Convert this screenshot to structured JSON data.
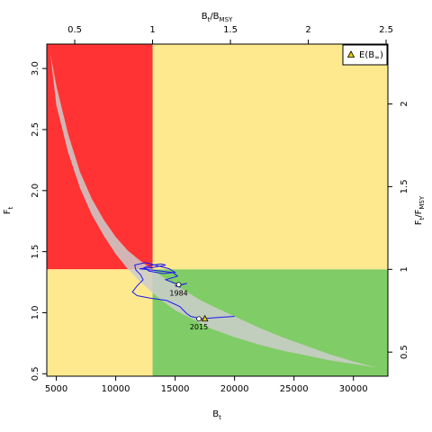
{
  "chart_data": {
    "type": "scatter",
    "colors": {
      "overfished_overfishing": "#ff3333",
      "caution": "#ffe98f",
      "healthy": "#80cc66",
      "envelope": "#cccccc",
      "trajectory": "#1a1aee",
      "equilibrium_marker": "#e8d000"
    },
    "x_axis": {
      "label_main": "B",
      "label_sub": "t",
      "lim": [
        4200,
        32900
      ],
      "ticks": [
        5000,
        10000,
        15000,
        20000,
        25000,
        30000
      ],
      "tick_labels": [
        "5000",
        "10000",
        "15000",
        "20000",
        "25000",
        "30000"
      ]
    },
    "y_axis": {
      "label_main": "F",
      "label_sub": "t",
      "lim": [
        0.48,
        3.2
      ],
      "ticks": [
        0.5,
        1.0,
        1.5,
        2.0,
        2.5,
        3.0
      ],
      "tick_labels": [
        "0.5",
        "1.0",
        "1.5",
        "2.0",
        "2.5",
        "3.0"
      ]
    },
    "top_axis": {
      "label_main": "B",
      "label_sub1": "t",
      "label_mid": "/B",
      "label_sub2": "MSY",
      "bmsy": 13100,
      "ticks": [
        0.5,
        1,
        1.5,
        2,
        2.5
      ],
      "tick_labels": [
        "0.5",
        "1",
        "1.5",
        "2",
        "2.5"
      ]
    },
    "right_axis": {
      "label_main": "F",
      "label_sub1": "t",
      "label_mid": "/F",
      "label_sub2": "MSY",
      "fmsy": 1.355,
      "ticks": [
        0.5,
        1,
        1.5,
        2
      ],
      "tick_labels": [
        "0.5",
        "1",
        "1.5",
        "2"
      ]
    },
    "legend": {
      "position": "top-right",
      "label_main": "E(B",
      "label_sub": "∞",
      "label_end": ")"
    },
    "envelope_upper": [
      [
        4500,
        3.12
      ],
      [
        5000,
        2.86
      ],
      [
        6000,
        2.46
      ],
      [
        7000,
        2.15
      ],
      [
        8000,
        1.93
      ],
      [
        9000,
        1.76
      ],
      [
        10000,
        1.62
      ],
      [
        11000,
        1.51
      ],
      [
        12000,
        1.43
      ],
      [
        13000,
        1.36
      ],
      [
        14000,
        1.29
      ],
      [
        15000,
        1.23
      ],
      [
        16000,
        1.17
      ],
      [
        17000,
        1.11
      ],
      [
        18000,
        1.06
      ],
      [
        20000,
        0.97
      ],
      [
        22000,
        0.88
      ],
      [
        24000,
        0.8
      ],
      [
        26000,
        0.73
      ],
      [
        28000,
        0.66
      ],
      [
        30000,
        0.6
      ],
      [
        32000,
        0.55
      ]
    ],
    "envelope_lower": [
      [
        32000,
        0.55
      ],
      [
        30000,
        0.58
      ],
      [
        28000,
        0.61
      ],
      [
        26000,
        0.65
      ],
      [
        24000,
        0.69
      ],
      [
        22000,
        0.74
      ],
      [
        20000,
        0.8
      ],
      [
        18000,
        0.87
      ],
      [
        17000,
        0.92
      ],
      [
        16000,
        0.97
      ],
      [
        15000,
        1.02
      ],
      [
        14000,
        1.09
      ],
      [
        13000,
        1.17
      ],
      [
        12000,
        1.26
      ],
      [
        11000,
        1.36
      ],
      [
        10000,
        1.48
      ],
      [
        9000,
        1.63
      ],
      [
        8000,
        1.8
      ],
      [
        7000,
        2.02
      ],
      [
        6000,
        2.31
      ],
      [
        5000,
        2.7
      ],
      [
        4500,
        3.12
      ]
    ],
    "trajectory": [
      [
        20000,
        0.97
      ],
      [
        18500,
        0.96
      ],
      [
        17200,
        0.95
      ],
      [
        16300,
        0.97
      ],
      [
        15900,
        1.0
      ],
      [
        15400,
        1.05
      ],
      [
        14300,
        1.1
      ],
      [
        12900,
        1.12
      ],
      [
        11800,
        1.14
      ],
      [
        11400,
        1.17
      ],
      [
        11800,
        1.22
      ],
      [
        12300,
        1.27
      ],
      [
        12100,
        1.31
      ],
      [
        11700,
        1.35
      ],
      [
        11600,
        1.39
      ],
      [
        12500,
        1.41
      ],
      [
        13700,
        1.38
      ],
      [
        14500,
        1.36
      ],
      [
        15000,
        1.33
      ],
      [
        14000,
        1.32
      ],
      [
        12800,
        1.34
      ],
      [
        12400,
        1.37
      ],
      [
        13100,
        1.39
      ],
      [
        13800,
        1.4
      ],
      [
        14200,
        1.39
      ],
      [
        13100,
        1.37
      ],
      [
        12000,
        1.36
      ],
      [
        13000,
        1.35
      ],
      [
        14800,
        1.33
      ],
      [
        15200,
        1.3
      ],
      [
        14200,
        1.27
      ],
      [
        15000,
        1.24
      ],
      [
        15500,
        1.23
      ],
      [
        16000,
        1.24
      ],
      [
        15600,
        1.23
      ],
      [
        15000,
        1.22
      ],
      [
        15400,
        1.21
      ],
      [
        15300,
        1.23
      ]
    ],
    "points": [
      {
        "label": "1984",
        "x": 15300,
        "y": 1.23,
        "label_dx": 0,
        "label_dy": 12
      },
      {
        "label": "2015",
        "x": 17000,
        "y": 0.95,
        "label_dx": 0,
        "label_dy": 12
      }
    ],
    "equilibrium": {
      "x": 17500,
      "y": 0.95
    }
  }
}
